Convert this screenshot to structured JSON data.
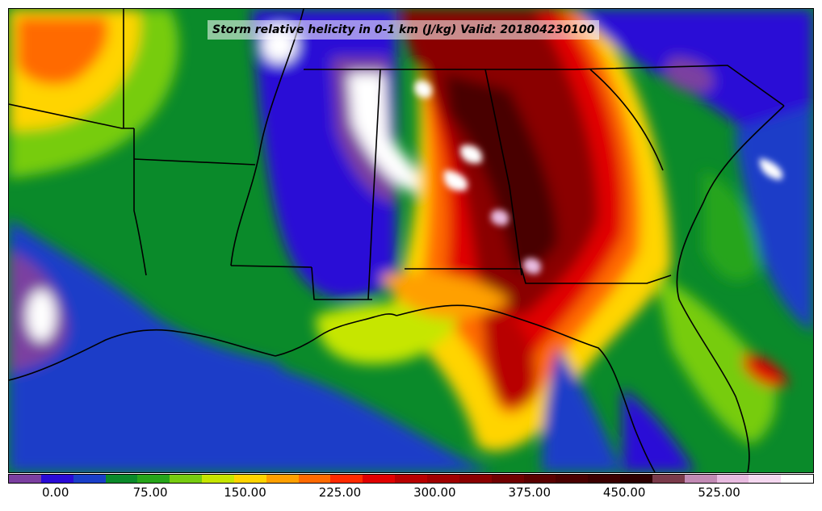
{
  "title": "Storm relative helicity in 0-1 km (J/kg) Valid: 201804230100",
  "colorbar": {
    "colors": [
      "#7b3fa0",
      "#2a0ad6",
      "#1a3ec8",
      "#0a8a2a",
      "#27a51a",
      "#77cc10",
      "#c6e600",
      "#ffd400",
      "#ffa000",
      "#ff6a00",
      "#ff2a00",
      "#e00000",
      "#b80000",
      "#a00000",
      "#8a0000",
      "#700000",
      "#5a0000",
      "#4a0000",
      "#3c0000",
      "#2e0000",
      "#7a3a4a",
      "#c28ab4",
      "#e8bbe0",
      "#f5d8f0",
      "#ffffff"
    ],
    "tick_labels": [
      "0.00",
      "75.00",
      "150.00",
      "225.00",
      "300.00",
      "375.00",
      "450.00",
      "525.00"
    ],
    "tick_values": [
      0,
      75,
      150,
      225,
      300,
      375,
      450,
      525
    ],
    "range": [
      -37.5,
      600
    ]
  }
}
